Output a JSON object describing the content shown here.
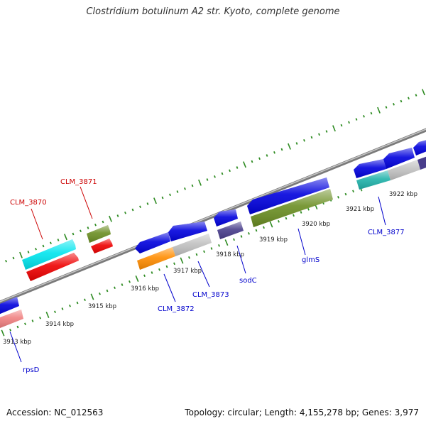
{
  "title": "Clostridium botulinum A2 str. Kyoto, complete genome",
  "footer": {
    "accession": "Accession: NC_012563",
    "summary": "Topology: circular; Length: 4,155,278 bp; Genes: 3,977"
  },
  "colors": {
    "backbone": "#8a8a8a",
    "tick": "#2e8b22",
    "label_forward": "#cc0000",
    "label_reverse": "#0000cc"
  },
  "ticks": [
    {
      "label": "3913 kbp"
    },
    {
      "label": "3914 kbp"
    },
    {
      "label": "3915 kbp"
    },
    {
      "label": "3916 kbp"
    },
    {
      "label": "3917 kbp"
    },
    {
      "label": "3918 kbp"
    },
    {
      "label": "3919 kbp"
    },
    {
      "label": "3920 kbp"
    },
    {
      "label": "3921 kbp"
    },
    {
      "label": "3922 kbp"
    }
  ],
  "features": [
    {
      "name": "CLM_3870",
      "strand": "forward",
      "color": "cyan"
    },
    {
      "name": "CLM_3870 CDS",
      "strand": "forward",
      "color": "red"
    },
    {
      "name": "CLM_3871",
      "strand": "forward",
      "color": "olive green"
    },
    {
      "name": "CLM_3871 CDS",
      "strand": "forward",
      "color": "red"
    },
    {
      "name": "rpsD",
      "strand": "reverse",
      "color": "blue"
    },
    {
      "name": "rpsD CDS",
      "strand": "reverse",
      "color": "pink"
    },
    {
      "name": "CLM_3872",
      "strand": "reverse",
      "color": "blue"
    },
    {
      "name": "CLM_3872 CDS",
      "strand": "reverse",
      "color": "orange"
    },
    {
      "name": "CLM_3873",
      "strand": "reverse",
      "color": "blue"
    },
    {
      "name": "CLM_3873 CDS",
      "strand": "reverse",
      "color": "gray"
    },
    {
      "name": "sodC",
      "strand": "reverse",
      "color": "blue"
    },
    {
      "name": "sodC CDS",
      "strand": "reverse",
      "color": "dark slate blue"
    },
    {
      "name": "glmS",
      "strand": "reverse",
      "color": "blue"
    },
    {
      "name": "glmS CDS",
      "strand": "reverse",
      "color": "olive green"
    },
    {
      "name": "CLM_3877",
      "strand": "reverse",
      "color": "blue"
    },
    {
      "name": "CLM_3877 CDS",
      "strand": "reverse",
      "color": "teal"
    },
    {
      "name": "next gene",
      "strand": "reverse",
      "color": "blue"
    },
    {
      "name": "next gene CDS",
      "strand": "reverse",
      "color": "gray"
    }
  ],
  "gene_labels": [
    {
      "text": "CLM_3870",
      "strand": "forward"
    },
    {
      "text": "CLM_3871",
      "strand": "forward"
    },
    {
      "text": "rpsD",
      "strand": "reverse"
    },
    {
      "text": "CLM_3872",
      "strand": "reverse"
    },
    {
      "text": "CLM_3873",
      "strand": "reverse"
    },
    {
      "text": "sodC",
      "strand": "reverse"
    },
    {
      "text": "glmS",
      "strand": "reverse"
    },
    {
      "text": "CLM_3877",
      "strand": "reverse"
    }
  ]
}
